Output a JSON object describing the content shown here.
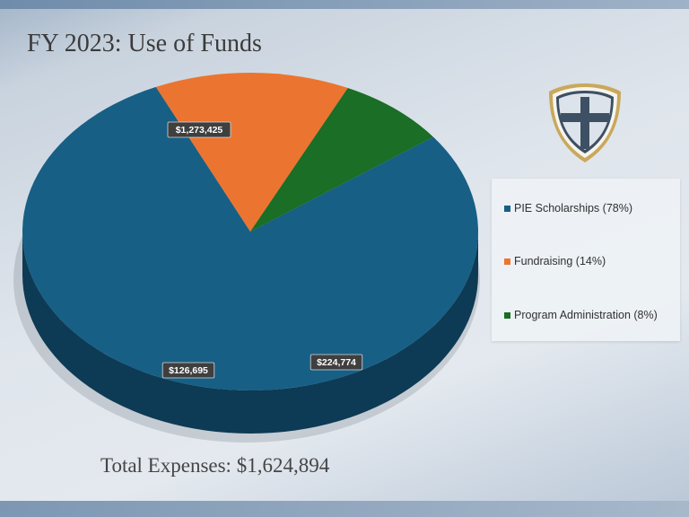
{
  "slide": {
    "title": "FY 2023: Use of Funds",
    "total": "Total Expenses: $1,624,894"
  },
  "logo": {
    "icon": "shield-cross-icon"
  },
  "chart_data": {
    "type": "pie",
    "style": "3d",
    "slices": [
      {
        "name": "PIE Scholarships",
        "legend": "PIE Scholarships (78%)",
        "value": 1273425,
        "label": "$1,273,425",
        "percent": 78,
        "color": "#175f85",
        "side_color": "#0d3a54"
      },
      {
        "name": "Fundraising",
        "legend": "Fundraising (14%)",
        "value": 224774,
        "label": "$224,774",
        "percent": 14,
        "color": "#ec7431",
        "side_color": "#6a2d14"
      },
      {
        "name": "Program Administration",
        "legend": "Program Administration (8%)",
        "value": 126695,
        "label": "$126,695",
        "percent": 8,
        "color": "#1a6e25",
        "side_color": "#0c3a12"
      }
    ],
    "legend_position": "right"
  }
}
